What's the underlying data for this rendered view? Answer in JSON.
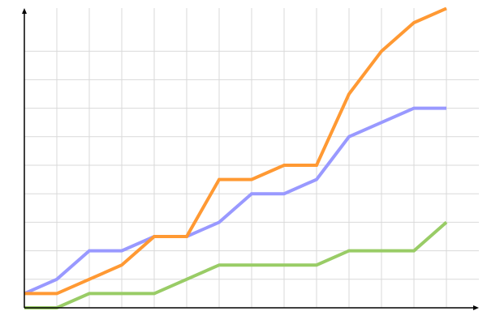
{
  "chart_data": {
    "type": "line",
    "title": "",
    "xlabel": "",
    "ylabel": "",
    "x": [
      0,
      1,
      2,
      3,
      4,
      5,
      6,
      7,
      8,
      9,
      10,
      11,
      12,
      13
    ],
    "ylim": [
      0,
      21
    ],
    "grid": true,
    "legend": "none",
    "series": [
      {
        "color": "#9999ff",
        "values": [
          1,
          2,
          4,
          4,
          5,
          5,
          6,
          8,
          8,
          9,
          12,
          13,
          14,
          14
        ]
      },
      {
        "color": "#ff9933",
        "values": [
          1,
          1,
          2,
          3,
          5,
          5,
          9,
          9,
          10,
          10,
          15,
          18,
          20,
          21
        ]
      },
      {
        "color": "#99cc66",
        "values": [
          0,
          0,
          1,
          1,
          1,
          2,
          3,
          3,
          3,
          3,
          4,
          4,
          4,
          6
        ]
      }
    ]
  }
}
